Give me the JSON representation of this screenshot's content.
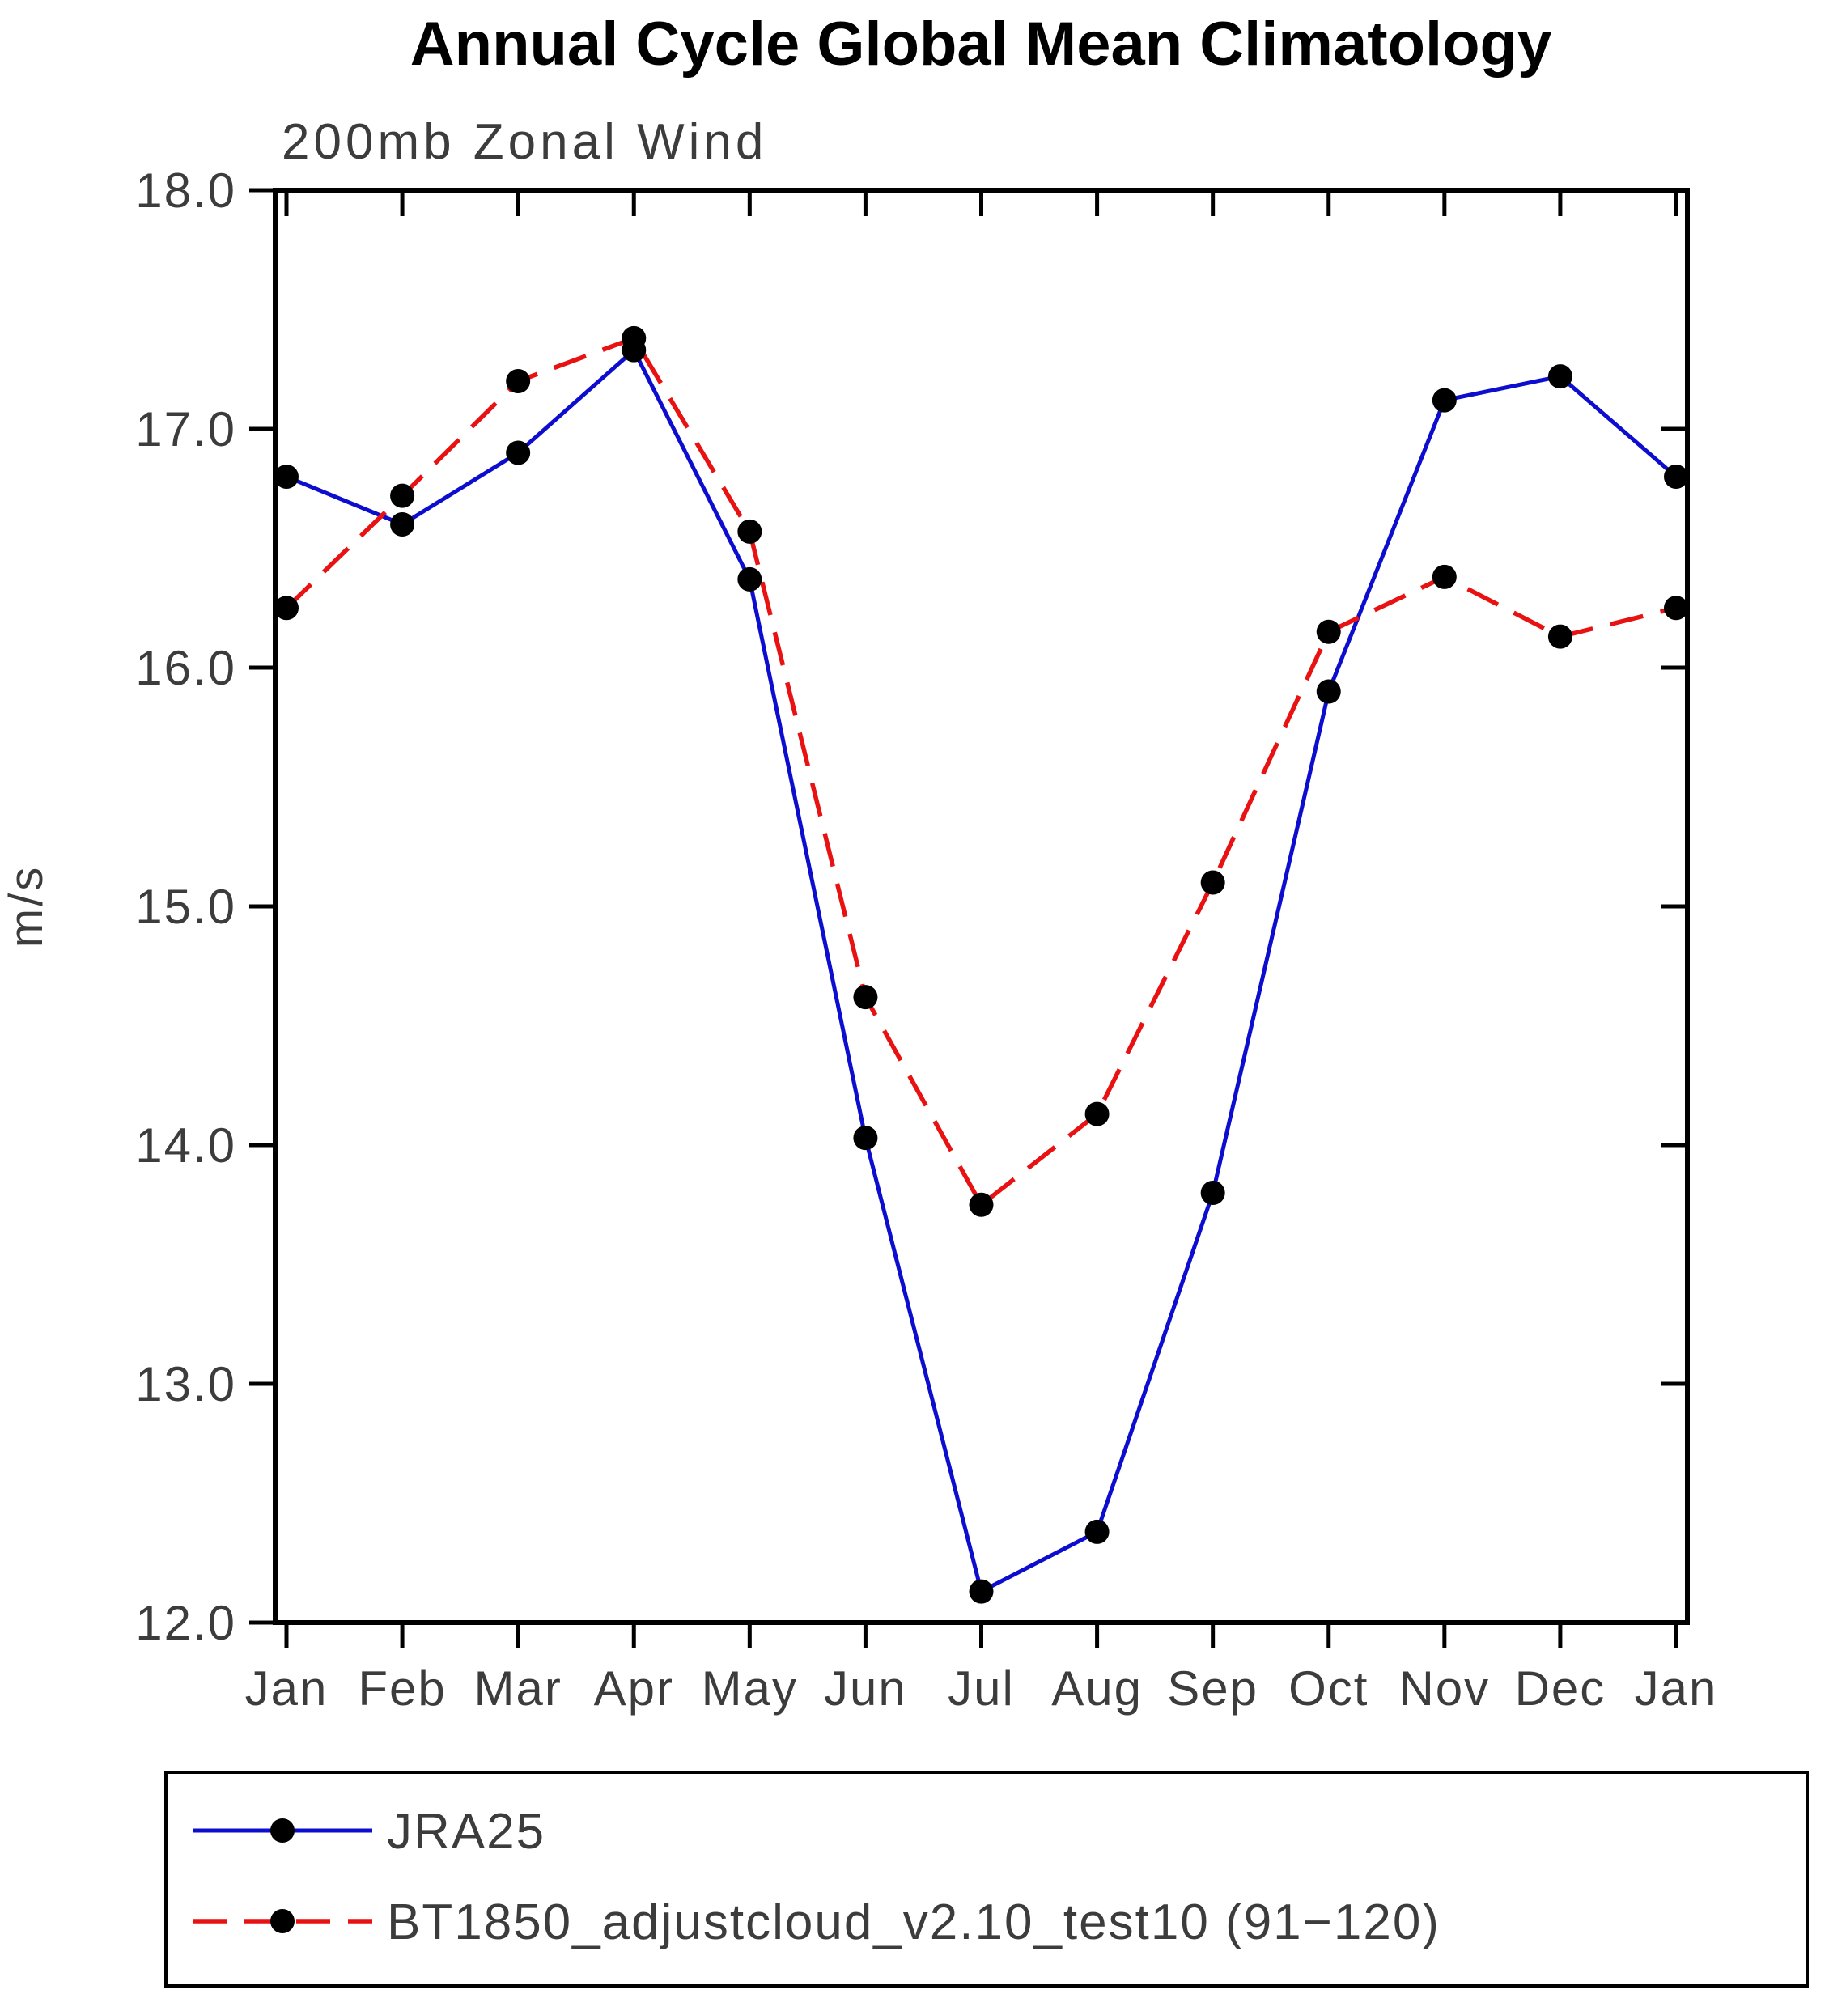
{
  "title": "Annual Cycle Global Mean Climatology",
  "subtitle": "200mb Zonal Wind",
  "ylabel": "m/s",
  "chart_data": {
    "type": "line",
    "categories": [
      "Jan",
      "Feb",
      "Mar",
      "Apr",
      "May",
      "Jun",
      "Jul",
      "Aug",
      "Sep",
      "Oct",
      "Nov",
      "Dec",
      "Jan"
    ],
    "ylim": [
      12.0,
      18.0
    ],
    "yticks": [
      12.0,
      13.0,
      14.0,
      15.0,
      16.0,
      17.0,
      18.0
    ],
    "grid": false,
    "legend_position": "bottom",
    "axis_color": "#000000",
    "text_color": "#3c3c3c",
    "marker_color": "#000000",
    "series": [
      {
        "name": "JRA25",
        "color": "#0d0dcf",
        "line_style": "solid",
        "values": [
          16.8,
          16.6,
          16.9,
          17.33,
          16.37,
          14.03,
          12.13,
          12.38,
          13.8,
          15.9,
          17.12,
          17.22,
          16.8
        ]
      },
      {
        "name": "BT1850_adjustcloud_v2.10_test10 (91−120)",
        "color": "#e81212",
        "line_style": "dashed",
        "values": [
          16.25,
          16.72,
          17.2,
          17.38,
          16.57,
          14.62,
          13.75,
          14.13,
          15.1,
          16.15,
          16.38,
          16.13,
          16.25
        ]
      }
    ]
  }
}
